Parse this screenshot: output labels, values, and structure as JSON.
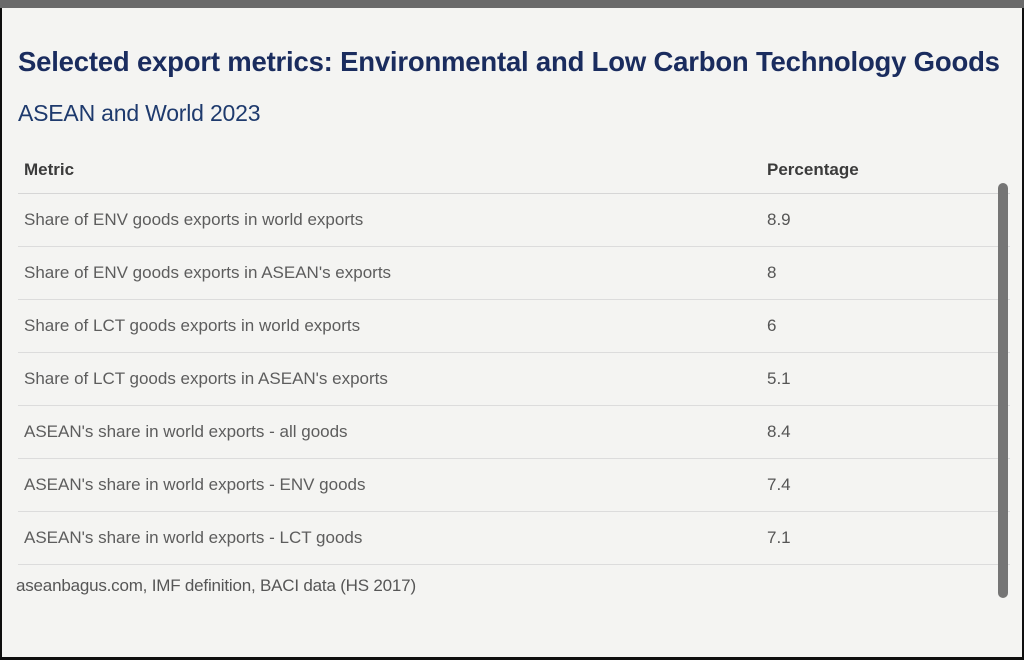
{
  "page": {
    "title": "Selected export metrics: Environmental and Low Carbon Technology Goods",
    "subtitle": "ASEAN and World 2023",
    "source": "aseanbagus.com, IMF definition, BACI data (HS 2017)",
    "accent_color": "#1a2c5e",
    "background_color": "#f4f4f2",
    "top_bar_color": "#6a6a6a"
  },
  "chart_data": {
    "type": "table",
    "title": "Selected export metrics: Environmental and Low Carbon Technology Goods",
    "subtitle": "ASEAN and World 2023",
    "columns": [
      "Metric",
      "Percentage"
    ],
    "rows": [
      {
        "metric": "Share of ENV goods exports in world exports",
        "value": "8.9"
      },
      {
        "metric": "Share of ENV goods exports in ASEAN's exports",
        "value": "8"
      },
      {
        "metric": "Share of LCT goods exports in world exports",
        "value": "6"
      },
      {
        "metric": "Share of LCT goods exports in ASEAN's exports",
        "value": "5.1"
      },
      {
        "metric": "ASEAN's share in world exports - all goods",
        "value": "8.4"
      },
      {
        "metric": "ASEAN's share in world exports - ENV goods",
        "value": "7.4"
      },
      {
        "metric": "ASEAN's share in world exports - LCT goods",
        "value": "7.1"
      }
    ],
    "source": "aseanbagus.com, IMF definition, BACI data (HS 2017)",
    "layout": {
      "grid": "horizontal-row-dividers",
      "value_column_align": "left"
    }
  }
}
